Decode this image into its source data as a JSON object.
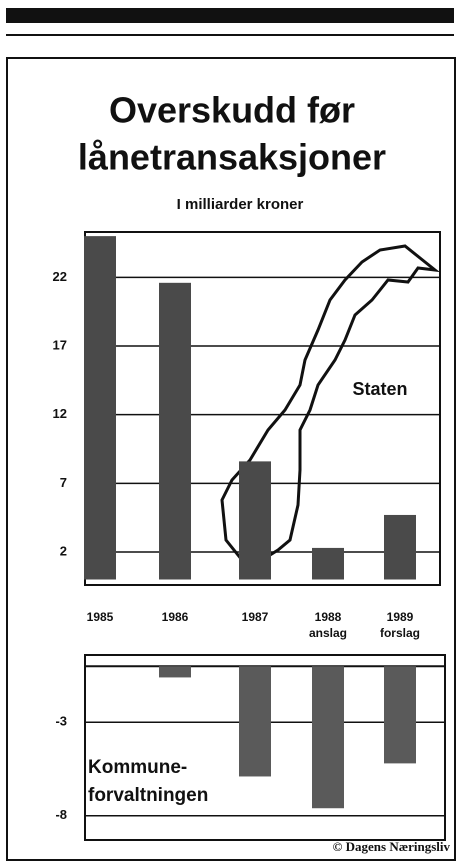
{
  "chart_data": [
    {
      "type": "bar",
      "title_lines": [
        "Overskudd før",
        "lånetransaksjoner"
      ],
      "subtitle": "I milliarder kroner",
      "label": "Staten",
      "categories": [
        "1985",
        "1986",
        "1987",
        "1988",
        "1989"
      ],
      "category_notes": [
        null,
        null,
        null,
        "anslag",
        "forslag"
      ],
      "values": [
        25,
        21.6,
        8.6,
        2.3,
        4.7
      ],
      "color": "#4a4a4a",
      "ylim": [
        -0.4,
        25.3
      ],
      "yticks": [
        2,
        7,
        12,
        17,
        22
      ],
      "grid": true
    },
    {
      "type": "bar",
      "label_lines": [
        "Kommune-",
        "forvaltningen"
      ],
      "categories": [
        "1985",
        "1986",
        "1987",
        "1988",
        "1989"
      ],
      "values": [
        0,
        -0.6,
        -5.9,
        -7.6,
        -5.2
      ],
      "color": "#5a5a5a",
      "ylim": [
        -9.3,
        0.6
      ],
      "yticks": [
        -3,
        -8
      ],
      "grid": true,
      "source": "© Dagens Næringsliv"
    }
  ]
}
